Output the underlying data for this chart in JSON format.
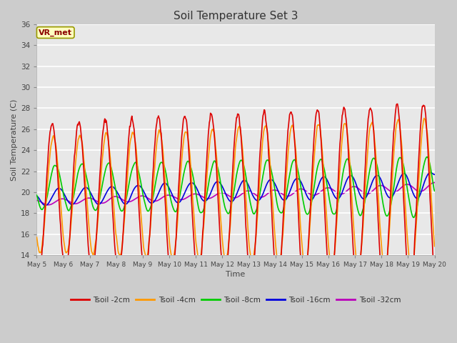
{
  "title": "Soil Temperature Set 3",
  "xlabel": "Time",
  "ylabel": "Soil Temperature (C)",
  "ylim": [
    14,
    36
  ],
  "yticks": [
    14,
    16,
    18,
    20,
    22,
    24,
    26,
    28,
    30,
    32,
    34,
    36
  ],
  "annotation_text": "VR_met",
  "fig_bg_color": "#cccccc",
  "plot_bg_color": "#e8e8e8",
  "grid_color": "white",
  "series_colors": {
    "Tsoil -2cm": "#dd0000",
    "Tsoil -4cm": "#ff9900",
    "Tsoil -8cm": "#00cc00",
    "Tsoil -16cm": "#0000dd",
    "Tsoil -32cm": "#bb00bb"
  },
  "n_days": 15,
  "start_day": 5,
  "start_month": "May"
}
